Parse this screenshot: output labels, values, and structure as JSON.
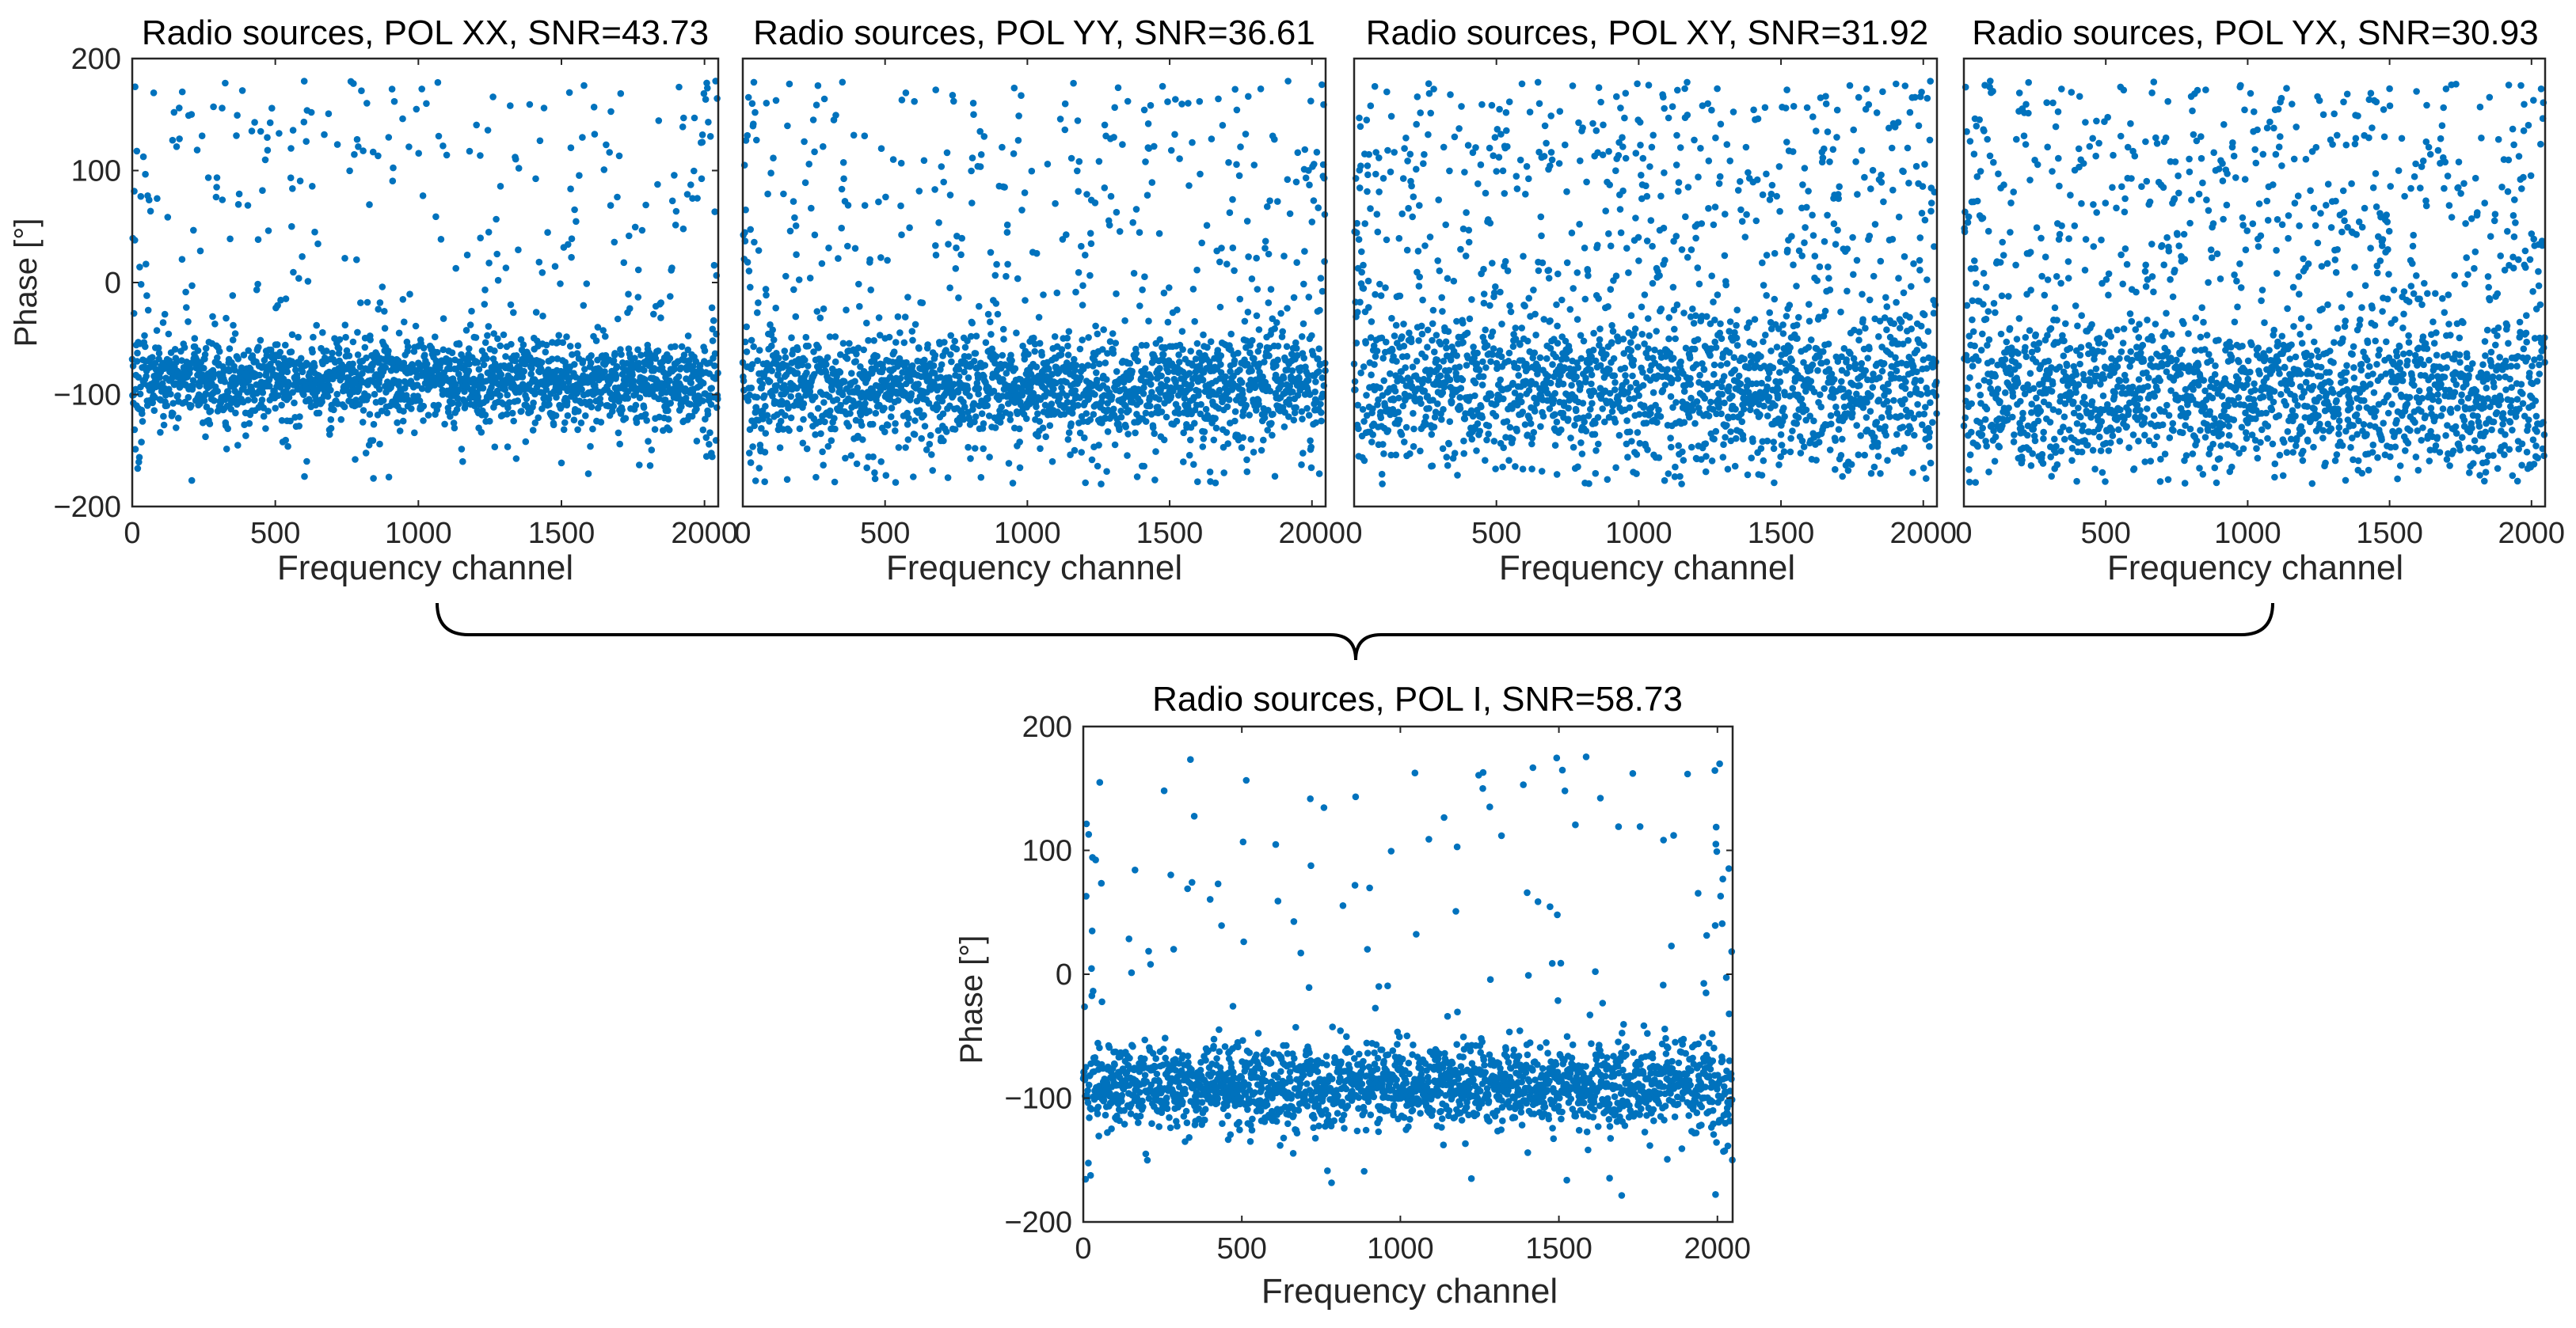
{
  "figure": {
    "colors": {
      "marker": "#0072BD",
      "axis": "#262626",
      "background": "#ffffff"
    }
  },
  "chart_data": [
    {
      "type": "scatter",
      "title": "Radio sources, POL XX, SNR=43.73",
      "xlabel": "Frequency channel",
      "ylabel": "Phase [°]",
      "xlim": [
        0,
        2048
      ],
      "ylim": [
        -200,
        200
      ],
      "xticks": [
        0,
        500,
        1000,
        1500,
        2000
      ],
      "xtick_labels": [
        "0",
        "500",
        "1000",
        "1500",
        "2000"
      ],
      "yticks": [
        -200,
        -100,
        0,
        100,
        200
      ],
      "ytick_labels": [
        "−200",
        "−100",
        "0",
        "100",
        "200"
      ],
      "series": [
        {
          "name": "phase",
          "n_points": 2048,
          "cluster_center": -88,
          "cluster_spread": 26,
          "outlier_fraction": 0.16,
          "edge_wrap": true
        }
      ]
    },
    {
      "type": "scatter",
      "title": "Radio sources, POL YY, SNR=36.61",
      "xlabel": "Frequency channel",
      "ylabel": "",
      "xlim": [
        0,
        2048
      ],
      "ylim": [
        -200,
        200
      ],
      "xticks": [
        0,
        500,
        1000,
        1500,
        2000
      ],
      "xtick_labels": [
        "0",
        "500",
        "1000",
        "1500",
        "2000"
      ],
      "yticks": [],
      "ytick_labels": [],
      "series": [
        {
          "name": "phase",
          "n_points": 2048,
          "cluster_center": -92,
          "cluster_spread": 33,
          "outlier_fraction": 0.26,
          "edge_wrap": true
        }
      ]
    },
    {
      "type": "scatter",
      "title": "Radio sources, POL XY, SNR=31.92",
      "xlabel": "Frequency channel",
      "ylabel": "",
      "xlim": [
        0,
        2048
      ],
      "ylim": [
        -200,
        200
      ],
      "xticks": [
        0,
        500,
        1000,
        1500,
        2000
      ],
      "xtick_labels": [
        "0",
        "500",
        "1000",
        "1500",
        "2000"
      ],
      "yticks": [],
      "ytick_labels": [],
      "series": [
        {
          "name": "phase",
          "n_points": 2048,
          "cluster_center": -95,
          "cluster_spread": 45,
          "outlier_fraction": 0.38,
          "edge_wrap": true
        }
      ]
    },
    {
      "type": "scatter",
      "title": "Radio sources, POL YX, SNR=30.93",
      "xlabel": "Frequency channel",
      "ylabel": "",
      "xlim": [
        0,
        2048
      ],
      "ylim": [
        -200,
        200
      ],
      "xticks": [
        0,
        500,
        1000,
        1500,
        2000
      ],
      "xtick_labels": [
        "0",
        "500",
        "1000",
        "1500",
        "2000"
      ],
      "yticks": [],
      "ytick_labels": [],
      "series": [
        {
          "name": "phase",
          "n_points": 2048,
          "cluster_center": -100,
          "cluster_spread": 45,
          "outlier_fraction": 0.4,
          "edge_wrap": true
        }
      ]
    },
    {
      "type": "scatter",
      "title": "Radio sources, POL I, SNR=58.73",
      "xlabel": "Frequency channel",
      "ylabel": "Phase [°]",
      "xlim": [
        0,
        2048
      ],
      "ylim": [
        -200,
        200
      ],
      "xticks": [
        0,
        500,
        1000,
        1500,
        2000
      ],
      "xtick_labels": [
        "0",
        "500",
        "1000",
        "1500",
        "2000"
      ],
      "yticks": [
        -200,
        -100,
        0,
        100,
        200
      ],
      "ytick_labels": [
        "−200",
        "−100",
        "0",
        "100",
        "200"
      ],
      "series": [
        {
          "name": "phase",
          "n_points": 2048,
          "cluster_center": -90,
          "cluster_spread": 24,
          "outlier_fraction": 0.07,
          "edge_wrap": true
        }
      ]
    }
  ]
}
